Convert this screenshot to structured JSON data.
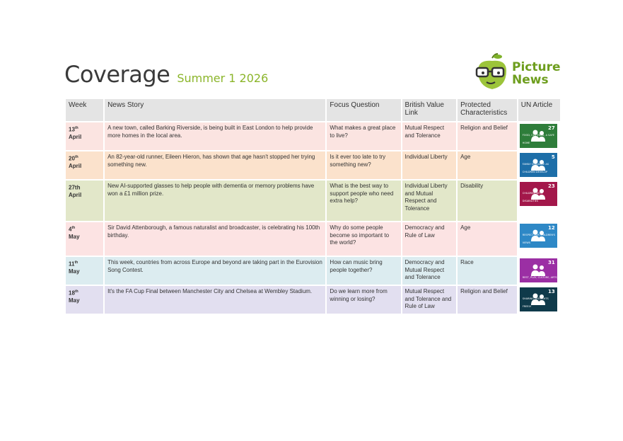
{
  "header": {
    "title": "Coverage",
    "subtitle": "Summer 1 2026",
    "logo_line1": "Picture",
    "logo_line2": "News"
  },
  "columns": [
    "Week",
    "News Story",
    "Focus Question",
    "British Value Link",
    "Protected Characteristics",
    "UN Article"
  ],
  "rows": [
    {
      "day": "13",
      "sup": "th",
      "month": "April",
      "story": "A new town, called Barking Riverside, is being built in East London to help provide more homes in the local area.",
      "question": "What makes a great place to live?",
      "value": "Mutual Respect and Tolerance",
      "protected": "Religion and Belief",
      "article_num": "27",
      "article_caption": "FOOD, CLOTHING, A SAFE HOME",
      "bg": "#fbe4e1",
      "un_color": "#2e7d3a"
    },
    {
      "day": "20",
      "sup": "th",
      "month": "April",
      "story": "An 82-year-old runner, Eileen Hieron, has shown that age hasn't stopped her trying something new.",
      "question": "Is it ever too late to try something new?",
      "value": "Individual Liberty",
      "protected": "Age",
      "article_num": "5",
      "article_caption": "FAMILY GUIDANCE AS CHILDREN DEVELOP",
      "bg": "#fbe2cc",
      "un_color": "#1d6ea8"
    },
    {
      "day": "27th",
      "sup": "",
      "month": "April",
      "story": "New AI-supported glasses to help people with dementia or memory problems have won a £1 million prize.",
      "question": "What is the best way to support people who need extra help?",
      "value": "Individual Liberty and Mutual Respect and Tolerance",
      "protected": "Disability",
      "article_num": "23",
      "article_caption": "CHILDREN WITH DISABILITIES",
      "bg": "#e2e7c9",
      "un_color": "#a3174a"
    },
    {
      "day": "4",
      "sup": "th",
      "month": "May",
      "story": "Sir David Attenborough, a famous naturalist and broadcaster, is celebrating his 100th birthday.",
      "question": "Why do some people become so important to the world?",
      "value": "Democracy and Rule of Law",
      "protected": "Age",
      "article_num": "12",
      "article_caption": "RESPECT FOR CHILDREN'S VIEWS",
      "bg": "#fce3e3",
      "un_color": "#2e88c6"
    },
    {
      "day": "11",
      "sup": "th",
      "month": "May",
      "story": "This week, countries from across Europe and beyond are taking part in the Eurovision Song Contest.",
      "question": "How can music bring people together?",
      "value": "Democracy and Mutual Respect and Tolerance",
      "protected": "Race",
      "article_num": "31",
      "article_caption": "REST, PLAY, CULTURE, ARTS",
      "bg": "#dcecf0",
      "un_color": "#9b2fa4"
    },
    {
      "day": "18",
      "sup": "th",
      "month": "May",
      "story": "It's the FA Cup Final between Manchester City and Chelsea at Wembley Stadium.",
      "question": "Do we learn more from winning or losing?",
      "value": "Mutual Respect and Tolerance and Rule of Law",
      "protected": "Religion and Belief",
      "article_num": "13",
      "article_caption": "SHARING THOUGHTS FREELY",
      "bg": "#e2dff0",
      "un_color": "#0f3a4a"
    }
  ]
}
